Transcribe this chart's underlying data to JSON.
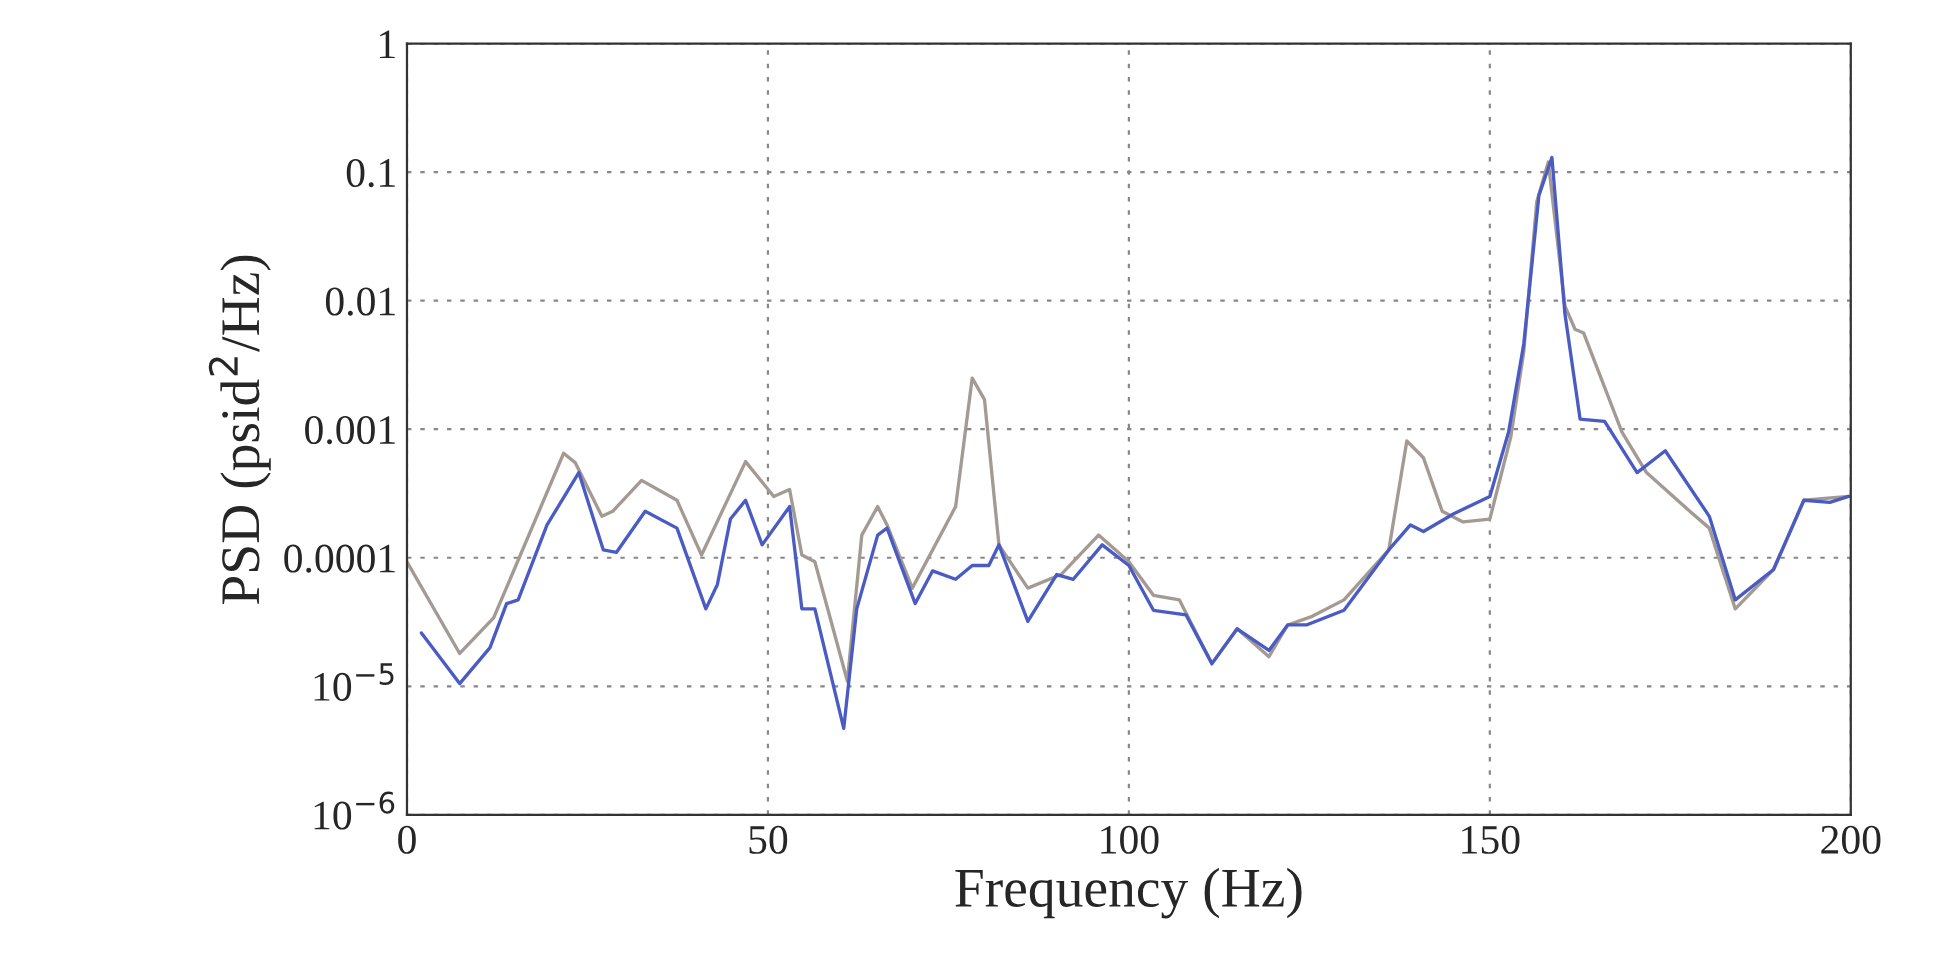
{
  "chart_data": {
    "type": "line",
    "xlabel": "Frequency (Hz)",
    "ylabel": "PSD (psid$^{2}$/Hz)",
    "log": "y",
    "grid": true,
    "line_style": "solid",
    "marker": "none",
    "xlim": [
      0,
      200
    ],
    "xticks": [
      0,
      50,
      100,
      150,
      200
    ],
    "ylim": [
      1e-06,
      1
    ],
    "yticks": [
      {
        "value": 1e-06,
        "label": "10$^{−6}$"
      },
      {
        "value": 1e-05,
        "label": "10$^{−5}$"
      },
      {
        "value": 0.0001,
        "label": "0.0001"
      },
      {
        "value": 0.001,
        "label": "0.001"
      },
      {
        "value": 0.01,
        "label": "0.01"
      },
      {
        "value": 0.1,
        "label": "0.1"
      },
      {
        "value": 1,
        "label": "1"
      }
    ],
    "series": [
      {
        "color": "#a49a94",
        "x": [
          0,
          7.3,
          12,
          21.7,
          23.3,
          27,
          28.5,
          32.5,
          37.4,
          40.8,
          46.9,
          50.8,
          53,
          54.7,
          56.5,
          61,
          63,
          65.2,
          66.5,
          70,
          76,
          78.3,
          80,
          82,
          86,
          90.6,
          95.8,
          100,
          103.4,
          107,
          111.5,
          115,
          119.4,
          122,
          125.4,
          129.8,
          136,
          138.5,
          140.8,
          143.4,
          146.3,
          150,
          152.9,
          154.7,
          156.5,
          158.1,
          160.4,
          161.8,
          163,
          168.3,
          171.7,
          177.7,
          180.4,
          184,
          189.3,
          193.5,
          199.7
        ],
        "values": [
          9.3e-05,
          1.8e-05,
          3.4e-05,
          0.00065,
          0.00055,
          0.00021,
          0.00023,
          0.0004,
          0.00028,
          0.000105,
          0.00056,
          0.0003,
          0.00034,
          0.000105,
          9.3e-05,
          1.1e-05,
          0.00015,
          0.00025,
          0.00018,
          5.8e-05,
          0.00025,
          0.0025,
          0.0017,
          0.000126,
          5.8e-05,
          7.4e-05,
          0.00015,
          9.3e-05,
          5.1e-05,
          4.7e-05,
          1.5e-05,
          2.8e-05,
          1.7e-05,
          3e-05,
          3.5e-05,
          4.7e-05,
          0.000115,
          0.00081,
          0.0006,
          0.00023,
          0.00019,
          0.0002,
          0.00087,
          0.004,
          0.059,
          0.12,
          0.0091,
          0.006,
          0.0056,
          0.00095,
          0.00046,
          0.00023,
          0.00017,
          4e-05,
          8.1e-05,
          0.00028,
          0.0003
        ]
      },
      {
        "color": "#4a5cc4",
        "x": [
          2,
          7.3,
          11.5,
          13.8,
          15.4,
          19.4,
          23.8,
          27.2,
          29,
          33,
          37.4,
          41.4,
          43,
          44.8,
          46.9,
          49.2,
          53,
          54.7,
          56.5,
          60.5,
          62.3,
          65.2,
          66.5,
          70.4,
          72.8,
          76,
          78.3,
          80.6,
          82,
          86,
          90,
          92.3,
          96.3,
          100,
          103.4,
          107.9,
          111.5,
          115,
          119.4,
          122,
          124.6,
          129.8,
          136,
          139,
          140.8,
          145,
          150,
          152.6,
          154.7,
          156.8,
          158.6,
          160.4,
          162.5,
          165.9,
          170.4,
          174.3,
          180.4,
          184,
          189.3,
          193.5,
          197.1,
          199.7
        ],
        "values": [
          2.6e-05,
          1.05e-05,
          2e-05,
          4.4e-05,
          4.7e-05,
          0.00018,
          0.00046,
          0.000115,
          0.00011,
          0.00023,
          0.00017,
          4e-05,
          6.2e-05,
          0.0002,
          0.00028,
          0.000126,
          0.00025,
          4e-05,
          4e-05,
          4.7e-06,
          4e-05,
          0.00015,
          0.00017,
          4.4e-05,
          7.9e-05,
          6.8e-05,
          8.7e-05,
          8.7e-05,
          0.000126,
          3.2e-05,
          7.4e-05,
          6.8e-05,
          0.000126,
          8.7e-05,
          3.9e-05,
          3.6e-05,
          1.5e-05,
          2.8e-05,
          1.9e-05,
          3e-05,
          3e-05,
          3.9e-05,
          0.000115,
          0.00018,
          0.00016,
          0.00022,
          0.0003,
          0.00095,
          0.0046,
          0.066,
          0.13,
          0.0079,
          0.0012,
          0.00115,
          0.00046,
          0.00068,
          0.00021,
          4.7e-05,
          8.1e-05,
          0.00028,
          0.00027,
          0.0003
        ]
      }
    ]
  }
}
